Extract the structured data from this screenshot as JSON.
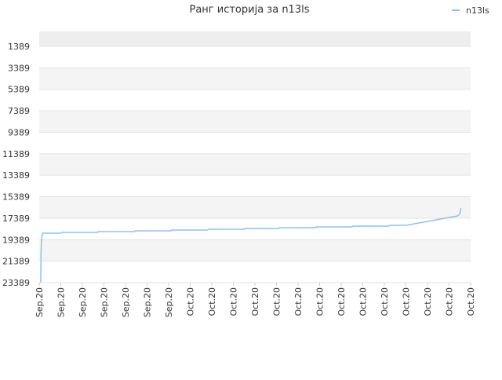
{
  "chart_data": {
    "type": "line",
    "title": "Ранг историја за n13ls",
    "x": [
      0.07,
      0.08,
      0.1,
      0.15,
      1.0,
      1.05,
      2.7,
      2.75,
      4.4,
      4.45,
      6.1,
      6.15,
      7.8,
      7.85,
      9.5,
      9.55,
      11.1,
      11.15,
      12.8,
      12.85,
      14.5,
      14.55,
      16.2,
      16.25,
      17.0,
      19.4,
      19.5,
      19.55
    ],
    "series": [
      {
        "name": "n13ls",
        "color": "#90c0f0",
        "values": [
          23389,
          21000,
          19600,
          18784,
          18784,
          18711,
          18711,
          18638,
          18638,
          18565,
          18565,
          18492,
          18492,
          18419,
          18419,
          18346,
          18346,
          18273,
          18273,
          18200,
          18200,
          18127,
          18127,
          18054,
          18054,
          17176,
          17000,
          16445
        ]
      }
    ],
    "xlim": [
      0,
      20
    ],
    "xticks": [
      {
        "value": 0,
        "label": "Sep.20"
      },
      {
        "value": 1,
        "label": "Sep.20"
      },
      {
        "value": 2,
        "label": "Sep.20"
      },
      {
        "value": 3,
        "label": "Sep.20"
      },
      {
        "value": 4,
        "label": "Sep.20"
      },
      {
        "value": 5,
        "label": "Sep.20"
      },
      {
        "value": 6,
        "label": "Sep.20"
      },
      {
        "value": 7,
        "label": "Oct.20"
      },
      {
        "value": 8,
        "label": "Oct.20"
      },
      {
        "value": 9,
        "label": "Oct.20"
      },
      {
        "value": 10,
        "label": "Oct.20"
      },
      {
        "value": 11,
        "label": "Oct.20"
      },
      {
        "value": 12,
        "label": "Oct.20"
      },
      {
        "value": 13,
        "label": "Oct.20"
      },
      {
        "value": 14,
        "label": "Oct.20"
      },
      {
        "value": 15,
        "label": "Oct.20"
      },
      {
        "value": 16,
        "label": "Oct.20"
      },
      {
        "value": 17,
        "label": "Oct.20"
      },
      {
        "value": 18,
        "label": "Oct.20"
      },
      {
        "value": 19,
        "label": "Oct.20"
      },
      {
        "value": 20,
        "label": "Oct.20"
      }
    ],
    "ylim": [
      23389,
      0
    ],
    "yticks": [
      1389,
      3389,
      5389,
      7389,
      9389,
      11389,
      13389,
      15389,
      17389,
      19389,
      21389,
      23389
    ],
    "grid": true,
    "legend": "top-right"
  }
}
